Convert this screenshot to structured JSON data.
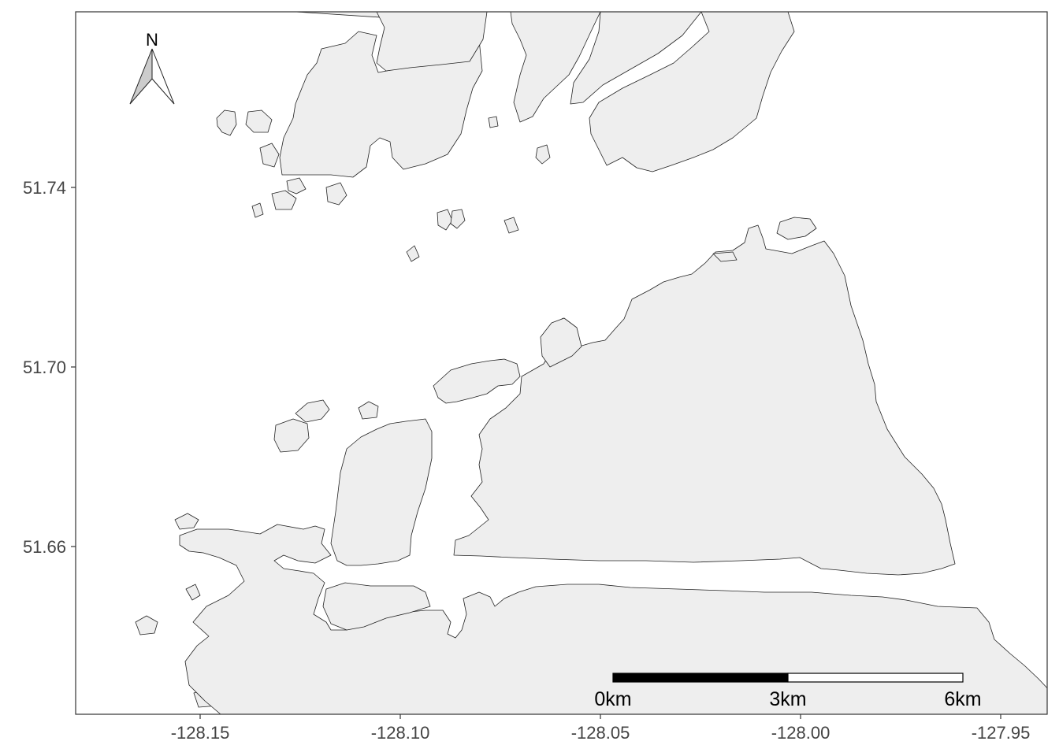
{
  "map": {
    "x_ticks": [
      "-128.15",
      "-128.10",
      "-128.05",
      "-128.00",
      "-127.95"
    ],
    "y_ticks": [
      "51.74",
      "51.70",
      "51.66"
    ],
    "scale_bar": {
      "labels": [
        "0km",
        "3km",
        "6km"
      ],
      "fill_colors": [
        "#000000",
        "#ffffff"
      ]
    },
    "north_arrow": {
      "label": "N",
      "left_fill": "#cccccc",
      "right_fill": "#ffffff"
    },
    "colors": {
      "land": "#eeeeee",
      "coastline": "#222222",
      "water": "#ffffff",
      "frame": "#333333"
    }
  }
}
